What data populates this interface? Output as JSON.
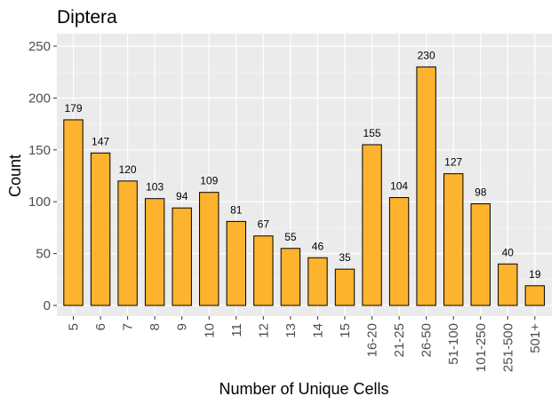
{
  "chart_data": {
    "type": "bar",
    "title": "Diptera",
    "xlabel": "Number of Unique Cells",
    "ylabel": "Count",
    "categories": [
      "5",
      "6",
      "7",
      "8",
      "9",
      "10",
      "11",
      "12",
      "13",
      "14",
      "15",
      "16-20",
      "21-25",
      "26-50",
      "51-100",
      "101-250",
      "251-500",
      "501+"
    ],
    "values": [
      179,
      147,
      120,
      103,
      94,
      109,
      81,
      67,
      55,
      46,
      35,
      155,
      104,
      230,
      127,
      98,
      40,
      19
    ],
    "ylim": [
      0,
      260
    ],
    "yticks": [
      0,
      50,
      100,
      150,
      200,
      250
    ],
    "grid": true,
    "bar_color": "#FDB32D",
    "bar_outline": "#000000",
    "panel_background": "#EBEBEB"
  }
}
